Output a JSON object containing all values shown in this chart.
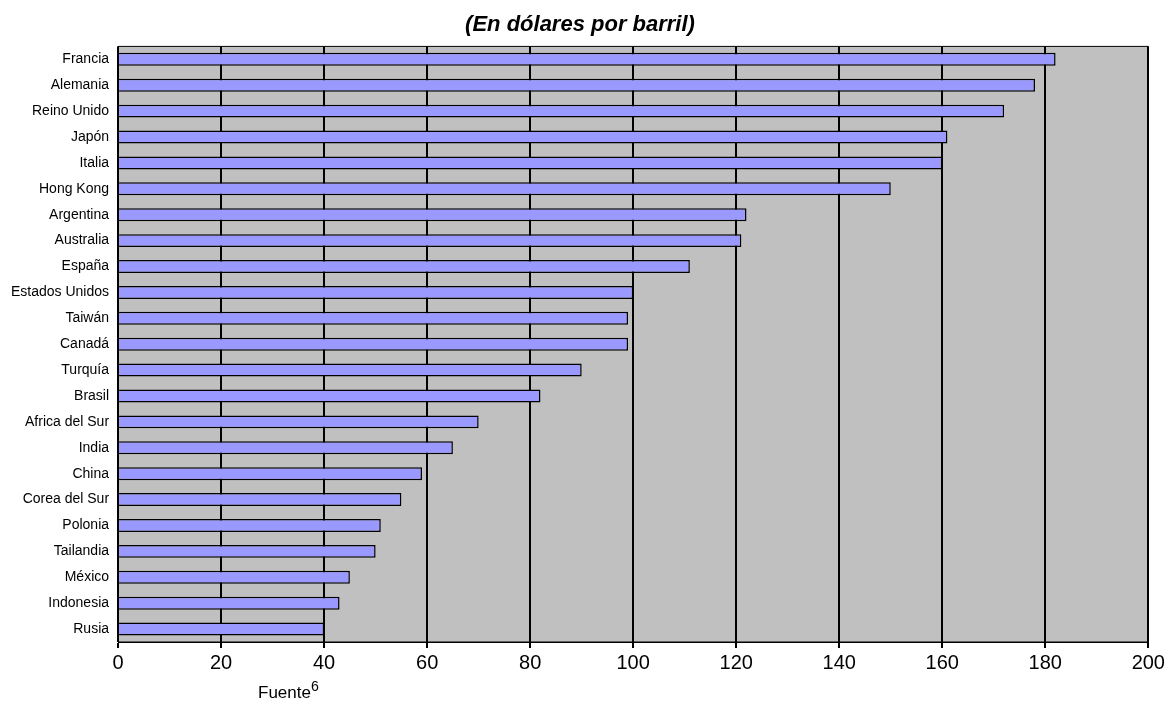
{
  "chart_data": {
    "type": "bar",
    "orientation": "horizontal",
    "title": "(En dólares por barril)",
    "categories": [
      "Francia",
      "Alemania",
      "Reino Unido",
      "Japón",
      "Italia",
      "Hong Kong",
      "Argentina",
      "Australia",
      "España",
      "Estados Unidos",
      "Taiwán",
      "Canadá",
      "Turquía",
      "Brasil",
      "Africa del Sur",
      "India",
      "China",
      "Corea del Sur",
      "Polonia",
      "Tailandia",
      "México",
      "Indonesia",
      "Rusia"
    ],
    "values": [
      182,
      178,
      172,
      161,
      160,
      150,
      122,
      121,
      111,
      100,
      99,
      99,
      90,
      82,
      70,
      65,
      59,
      55,
      51,
      50,
      45,
      43,
      40
    ],
    "color": "#9999ff",
    "xlim": [
      0,
      200
    ],
    "xticks": [
      0,
      20,
      40,
      60,
      80,
      100,
      120,
      140,
      160,
      180,
      200
    ],
    "grid": "x",
    "legend": false,
    "annotations": [
      "Fuente$^{6}$"
    ]
  }
}
